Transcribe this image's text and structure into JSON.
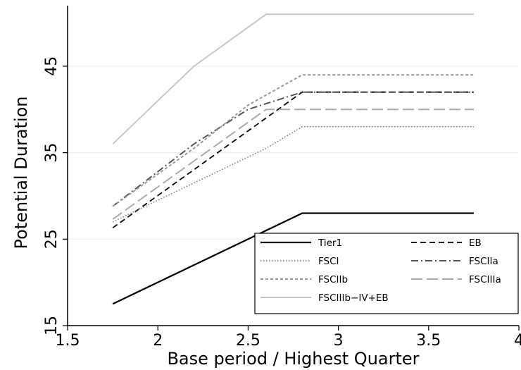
{
  "chart_data": {
    "type": "line",
    "title": "",
    "xlabel": "Base period / Highest Quarter",
    "ylabel": "Potential Duration",
    "xlim": [
      1.5,
      4
    ],
    "ylim": [
      15,
      52
    ],
    "xticks": [
      1.5,
      2,
      2.5,
      3,
      3.5,
      4
    ],
    "xtick_labels": [
      "1.5",
      "2",
      "2.5",
      "3",
      "3.5",
      "4"
    ],
    "yticks": [
      15,
      25,
      35,
      45
    ],
    "ytick_labels": [
      "15",
      "25",
      "35",
      "45"
    ],
    "grid": "horizontal",
    "legend_position": "bottom-right",
    "series": [
      {
        "name": "Tier1",
        "x": [
          1.75,
          2.8,
          3.75
        ],
        "y": [
          17.5,
          28,
          28
        ],
        "color": "#000000",
        "dash": "solid",
        "width": 2.2
      },
      {
        "name": "EB",
        "x": [
          1.75,
          2.8,
          3.75
        ],
        "y": [
          26.3,
          42,
          42
        ],
        "color": "#000000",
        "dash": "dashed",
        "width": 1.8
      },
      {
        "name": "FSCI",
        "x": [
          1.75,
          2.6,
          2.8,
          3.75
        ],
        "y": [
          27,
          35.5,
          38,
          38
        ],
        "color": "#777777",
        "dash": "dotted",
        "width": 1.5
      },
      {
        "name": "FSCIIa",
        "x": [
          1.75,
          2.2,
          2.5,
          2.8,
          3.75
        ],
        "y": [
          28.8,
          36,
          40,
          42,
          42
        ],
        "color": "#555555",
        "dash": "dashdot",
        "width": 2
      },
      {
        "name": "FSCIIb",
        "x": [
          1.75,
          2.2,
          2.5,
          2.8,
          3.75
        ],
        "y": [
          28.8,
          35.5,
          40.5,
          44,
          44
        ],
        "color": "#999999",
        "dash": "shortdash",
        "width": 2
      },
      {
        "name": "FSCIIIa",
        "x": [
          1.75,
          2.6,
          3.75
        ],
        "y": [
          27.3,
          40,
          40
        ],
        "color": "#aaaaaa",
        "dash": "longdash",
        "width": 2
      },
      {
        "name": "FSCIIIb−IV+EB",
        "x": [
          1.75,
          2.2,
          2.6,
          3.75
        ],
        "y": [
          36,
          45,
          51,
          51
        ],
        "color": "#c8c8c8",
        "dash": "solid",
        "width": 2
      }
    ]
  }
}
